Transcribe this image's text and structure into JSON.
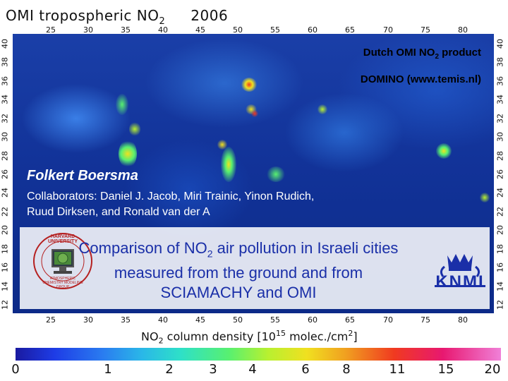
{
  "map": {
    "title_prefix": "OMI  tropospheric NO",
    "title_sub": "2",
    "year": "2006",
    "lon_ticks": [
      "25",
      "30",
      "35",
      "40",
      "45",
      "50",
      "55",
      "60",
      "65",
      "70",
      "75",
      "80"
    ],
    "lat_ticks": [
      "40",
      "38",
      "36",
      "34",
      "32",
      "30",
      "28",
      "26",
      "24",
      "22",
      "20",
      "18",
      "16",
      "14",
      "12"
    ]
  },
  "product_label": {
    "line1_prefix": "Dutch OMI NO",
    "line1_sub": "2",
    "line1_suffix": " product",
    "line2": "DOMINO (www.temis.nl)"
  },
  "author": {
    "name": "Folkert Boersma",
    "collaborators_line1": "Collaborators: Daniel J. Jacob, Miri Trainic, Yinon Rudich,",
    "collaborators_line2": "Ruud Dirksen, and Ronald van der A"
  },
  "presentation": {
    "title_line1_prefix": "Comparison of NO",
    "title_line1_sub": "2",
    "title_line1_suffix": " air pollution in Israeli cities",
    "title_line2": "measured from the ground and from",
    "title_line3": "SCIAMACHY and OMI"
  },
  "logos": {
    "harvard_text": "HARVARD UNIVERSITY",
    "harvard_group": "ATMOSPHERIC CHEMISTRY MODELING GROUP",
    "knmi_text": "KNMI"
  },
  "colorbar": {
    "label_prefix": "NO",
    "label_sub": "2",
    "label_mid": " column density  [10",
    "label_sup": "15",
    "label_units": " molec./cm",
    "label_sup2": "2",
    "label_end": "]",
    "ticks": [
      "0",
      "1",
      "2",
      "3",
      "4",
      "6",
      "8",
      "11",
      "15",
      "20"
    ],
    "colors": [
      "#1a1aa0",
      "#1e3ce6",
      "#2ab7e8",
      "#58f070",
      "#f0e020",
      "#f03a20",
      "#f080d8"
    ]
  }
}
